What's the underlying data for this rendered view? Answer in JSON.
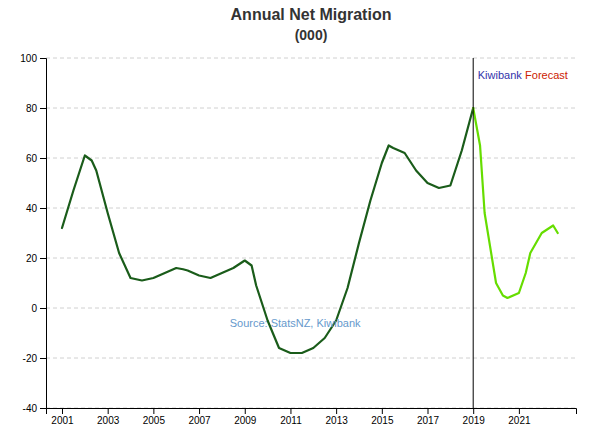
{
  "chart_data": {
    "type": "line",
    "title": "Annual Net Migration",
    "subtitle": "(000)",
    "series": [
      {
        "color": "#1a5c1a",
        "x": [
          2001,
          2001.5,
          2002,
          2002.3,
          2002.5,
          2003,
          2003.5,
          2004,
          2004.5,
          2005,
          2005.5,
          2006,
          2006.3,
          2006.5,
          2007,
          2007.5,
          2008,
          2008.5,
          2009,
          2009.3,
          2009.5,
          2010,
          2010.5,
          2011,
          2011.3,
          2011.5,
          2012,
          2012.5,
          2013,
          2013.5,
          2014,
          2014.5,
          2015,
          2015.3,
          2015.5,
          2016,
          2016.5,
          2017,
          2017.5,
          2018,
          2018.5,
          2019
        ],
        "values": [
          32,
          47,
          61,
          59,
          55,
          38,
          22,
          12,
          11,
          12,
          14,
          16,
          15.5,
          15,
          13,
          12,
          14,
          16,
          19,
          17,
          9,
          -5,
          -16,
          -18,
          -18,
          -18,
          -16,
          -12,
          -5,
          8,
          26,
          43,
          58,
          65,
          64,
          62,
          55,
          50,
          48,
          49,
          63,
          80
        ]
      },
      {
        "color": "#66dd00",
        "x": [
          2019,
          2019.3,
          2019.5,
          2020,
          2020.3,
          2020.5,
          2021,
          2021.3,
          2021.5,
          2022,
          2022.5,
          2022.7
        ],
        "values": [
          80,
          65,
          38,
          10,
          5,
          4,
          6,
          14,
          22,
          30,
          33,
          30
        ]
      }
    ],
    "vlines": [
      {
        "x": 2019,
        "color": "#000000"
      }
    ],
    "xlim": [
      2000.3,
      2023.5
    ],
    "xticks": [
      2001,
      2003,
      2005,
      2007,
      2009,
      2011,
      2013,
      2015,
      2017,
      2019,
      2021
    ],
    "ylim": [
      -40,
      100
    ],
    "yticks": [
      -40,
      -20,
      0,
      20,
      40,
      60,
      80,
      100
    ],
    "grid": true,
    "annotations": [
      {
        "text": "Source: StatsNZ, Kiwibank",
        "color": "#6699cc"
      },
      {
        "parts": [
          {
            "text": "Kiwibank",
            "color": "#3333aa"
          },
          {
            "text": "Forecast",
            "color": "#cc2200"
          }
        ],
        "x": 2019.2,
        "y": 95
      }
    ]
  }
}
